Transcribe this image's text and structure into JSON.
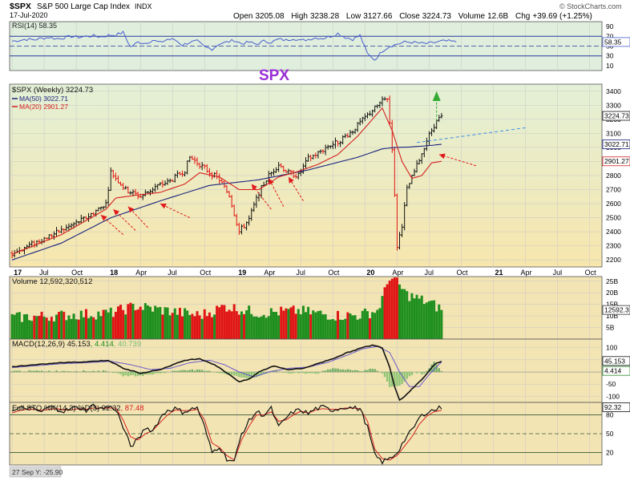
{
  "header": {
    "symbol": "$SPX",
    "name": "S&P 500 Large Cap Index",
    "exchange": "INDX",
    "date": "17-Jul-2020",
    "quote": {
      "open_label": "Open",
      "open": "3205.08",
      "high_label": "High",
      "high": "3238.28",
      "low_label": "Low",
      "low": "3127.66",
      "close_label": "Close",
      "close": "3224.73",
      "volume_label": "Volume",
      "volume": "12.6B",
      "chg_label": "Chg",
      "chg": "+39.69 (+1.25%)"
    },
    "watermark": "© StockCharts.com"
  },
  "annotation_text": "SPX",
  "colors": {
    "up": "#1e8f1e",
    "down": "#e01515",
    "price": "#111111",
    "ma50": "#1a237e",
    "ma20": "#d32020",
    "rsi": "#4a5fd0",
    "arrow": "#e01a1a",
    "target_arrow": "#33aa33",
    "trend": "#3a8ee6"
  },
  "chart_data": [
    {
      "type": "line",
      "panel": "rsi",
      "title": "RSI(14) 58.35",
      "ylim": [
        0,
        100
      ],
      "y_ticks": [
        90,
        70,
        50,
        30,
        10
      ],
      "ref_lines": [
        70,
        30
      ],
      "last_value_label": "58.35",
      "series": [
        {
          "name": "RSI(14)",
          "x": [
            0,
            3,
            6,
            9,
            12,
            15,
            18,
            21,
            24,
            27,
            30,
            33,
            36,
            39,
            42,
            45,
            48,
            51,
            54,
            57,
            60,
            63,
            66,
            69,
            72,
            75,
            78,
            81,
            84,
            87,
            90,
            93,
            96,
            99,
            102,
            105,
            108,
            111,
            114,
            117,
            120,
            123,
            126,
            129,
            132,
            135,
            138,
            141,
            144,
            147,
            150,
            153,
            156,
            159,
            162,
            165,
            168,
            171,
            174,
            177,
            180
          ],
          "values": [
            60,
            62,
            64,
            63,
            66,
            68,
            65,
            67,
            70,
            68,
            70,
            71,
            69,
            72,
            73,
            78,
            48,
            58,
            56,
            62,
            57,
            64,
            63,
            52,
            58,
            60,
            48,
            44,
            55,
            58,
            62,
            55,
            58,
            54,
            60,
            58,
            64,
            62,
            66,
            61,
            64,
            67,
            66,
            70,
            76,
            68,
            64,
            72,
            34,
            22,
            40,
            50,
            54,
            58,
            58,
            56,
            55,
            57,
            60,
            60,
            58.35
          ]
        }
      ]
    },
    {
      "type": "candlestick",
      "panel": "price",
      "title": "$SPX (Weekly) 3224.73",
      "ylim": [
        2150,
        3450
      ],
      "y_ticks": [
        3400,
        3300,
        3200,
        3100,
        3000,
        2900,
        2800,
        2700,
        2600,
        2500,
        2400,
        2300,
        2200
      ],
      "x_ticks": [
        {
          "x": 0,
          "label": "17"
        },
        {
          "x": 13,
          "label": "Jul"
        },
        {
          "x": 26,
          "label": "Oct"
        },
        {
          "x": 39,
          "label": "18"
        },
        {
          "x": 52,
          "label": "Apr"
        },
        {
          "x": 65,
          "label": "Jul"
        },
        {
          "x": 78,
          "label": "Oct"
        },
        {
          "x": 91,
          "label": "19"
        },
        {
          "x": 104,
          "label": "Apr"
        },
        {
          "x": 117,
          "label": "Jul"
        },
        {
          "x": 130,
          "label": "Oct"
        },
        {
          "x": 143,
          "label": "20"
        },
        {
          "x": 156,
          "label": "Apr"
        },
        {
          "x": 169,
          "label": "Jul"
        },
        {
          "x": 182,
          "label": "Oct"
        },
        {
          "x": 195,
          "label": "21"
        },
        {
          "x": 208,
          "label": "Apr"
        },
        {
          "x": 221,
          "label": "Jul"
        },
        {
          "x": 234,
          "label": "Oct"
        }
      ],
      "x_range": [
        -1,
        239
      ],
      "price_anchors_x": [
        0,
        10,
        20,
        30,
        38,
        40,
        46,
        52,
        58,
        64,
        70,
        72,
        76,
        84,
        88,
        92,
        96,
        100,
        104,
        108,
        112,
        116,
        120,
        124,
        128,
        132,
        138,
        144,
        150,
        152,
        154,
        156,
        158,
        160,
        164,
        168,
        171,
        174
      ],
      "price_anchors_y": [
        2245,
        2330,
        2410,
        2500,
        2600,
        2825,
        2700,
        2650,
        2720,
        2760,
        2840,
        2930,
        2880,
        2770,
        2660,
        2400,
        2490,
        2680,
        2800,
        2880,
        2820,
        2800,
        2920,
        2960,
        3010,
        3040,
        3120,
        3230,
        3330,
        3350,
        3000,
        2300,
        2450,
        2700,
        2870,
        3050,
        3160,
        3224.73
      ],
      "close": 3224.73,
      "ma50": {
        "name": "MA(50)",
        "value_label": "3022.71",
        "x": [
          0,
          20,
          40,
          60,
          80,
          100,
          120,
          140,
          150,
          155,
          160,
          165,
          170,
          174
        ],
        "values": [
          2200,
          2320,
          2500,
          2620,
          2730,
          2770,
          2840,
          2930,
          2990,
          3000,
          3002,
          3008,
          3015,
          3022.71
        ]
      },
      "ma20": {
        "name": "MA(20)",
        "value_label": "2901.27",
        "x": [
          0,
          20,
          38,
          42,
          50,
          60,
          70,
          76,
          84,
          92,
          100,
          108,
          116,
          124,
          132,
          140,
          146,
          150,
          154,
          158,
          162,
          166,
          170,
          174
        ],
        "values": [
          2240,
          2380,
          2560,
          2640,
          2660,
          2680,
          2740,
          2820,
          2790,
          2700,
          2700,
          2790,
          2830,
          2880,
          2950,
          3080,
          3200,
          3280,
          3120,
          2900,
          2780,
          2800,
          2890,
          2901.27
        ]
      },
      "last_labels": [
        "3224.73",
        "3022.71",
        "2901.27"
      ]
    },
    {
      "type": "bar",
      "panel": "volume",
      "title": "Volume 12,592,320,512",
      "ylim": [
        0,
        27
      ],
      "y_ticks": [
        {
          "value": 25,
          "label": "25B"
        },
        {
          "value": 20,
          "label": "20B"
        },
        {
          "value": 15,
          "label": "15B"
        },
        {
          "value": 10,
          "label": "10B"
        },
        {
          "value": 5,
          "label": "5B"
        }
      ],
      "last_value_label": "12592.3",
      "series": [
        {
          "name": "Volume",
          "anchors_x": [
            0,
            40,
            50,
            76,
            82,
            86,
            100,
            116,
            130,
            140,
            148,
            151,
            153,
            156,
            160,
            170,
            174
          ],
          "anchors_y": [
            9,
            11,
            14,
            10,
            12,
            14,
            11,
            12,
            10,
            10,
            12,
            20,
            27,
            24,
            19,
            15,
            12.59
          ]
        }
      ]
    },
    {
      "type": "line",
      "panel": "macd",
      "title": "MACD(12,26,9) 45.153, 4.414, 40.739",
      "legend": [
        "MACD(12,26,9) 45.153",
        "4.414",
        "40.739"
      ],
      "ylim": [
        -125,
        135
      ],
      "y_ticks": [
        100,
        50,
        -50,
        -100
      ],
      "last_labels": [
        "45.153",
        "4.414"
      ],
      "series": [
        {
          "name": "MACD",
          "x": [
            0,
            10,
            20,
            30,
            39,
            45,
            52,
            60,
            70,
            76,
            82,
            88,
            92,
            96,
            100,
            106,
            112,
            118,
            124,
            130,
            136,
            142,
            146,
            150,
            153,
            155,
            157,
            159,
            163,
            167,
            171,
            174
          ],
          "values": [
            22,
            30,
            38,
            42,
            48,
            15,
            -5,
            10,
            48,
            55,
            30,
            -10,
            -40,
            -30,
            0,
            25,
            10,
            15,
            35,
            55,
            80,
            100,
            110,
            100,
            20,
            -60,
            -115,
            -100,
            -60,
            -20,
            30,
            45.153
          ]
        },
        {
          "name": "Signal",
          "x": [
            0,
            10,
            20,
            30,
            40,
            48,
            56,
            64,
            72,
            80,
            86,
            92,
            98,
            104,
            112,
            120,
            128,
            136,
            142,
            148,
            153,
            157,
            161,
            165,
            169,
            174
          ],
          "values": [
            18,
            26,
            34,
            38,
            44,
            30,
            10,
            15,
            38,
            48,
            30,
            0,
            -20,
            0,
            15,
            20,
            40,
            70,
            95,
            105,
            80,
            0,
            -60,
            -60,
            -10,
            40.739
          ]
        },
        {
          "name": "Histogram",
          "x": [
            0,
            10,
            20,
            30,
            39,
            45,
            52,
            60,
            70,
            76,
            82,
            88,
            92,
            96,
            100,
            106,
            112,
            118,
            124,
            130,
            136,
            142,
            146,
            150,
            153,
            155,
            157,
            159,
            163,
            167,
            171,
            174
          ],
          "values": [
            4,
            4,
            4,
            4,
            4,
            -15,
            -15,
            -5,
            10,
            7,
            0,
            -10,
            -20,
            -30,
            -15,
            5,
            -5,
            -5,
            -5,
            15,
            10,
            5,
            15,
            -5,
            -60,
            -60,
            -55,
            -40,
            0,
            -10,
            40,
            4.414
          ]
        }
      ]
    },
    {
      "type": "line",
      "panel": "stochastic",
      "title": "Full STO %K(14,3) %D(3) 92.32, 87.48",
      "legend": [
        "Full STO %K(14,3) %D(3) 92.32",
        "87.48"
      ],
      "ylim": [
        0,
        100
      ],
      "y_ticks": [
        80,
        50,
        20
      ],
      "ref_lines": [
        80,
        20
      ],
      "last_value_label": "92.32",
      "series": [
        {
          "name": "%K",
          "x": [
            0,
            3,
            6,
            9,
            12,
            15,
            18,
            21,
            24,
            27,
            30,
            33,
            36,
            39,
            42,
            45,
            48,
            51,
            54,
            57,
            60,
            63,
            66,
            69,
            72,
            75,
            78,
            81,
            84,
            87,
            90,
            93,
            96,
            99,
            102,
            105,
            108,
            111,
            114,
            117,
            120,
            123,
            126,
            129,
            132,
            135,
            138,
            141,
            144,
            147,
            150,
            153,
            156,
            159,
            162,
            165,
            168,
            171,
            174
          ],
          "values": [
            85,
            90,
            92,
            88,
            85,
            93,
            91,
            86,
            90,
            92,
            88,
            95,
            90,
            93,
            90,
            60,
            30,
            40,
            60,
            55,
            75,
            88,
            90,
            85,
            88,
            92,
            60,
            20,
            30,
            10,
            5,
            50,
            70,
            85,
            80,
            90,
            60,
            75,
            85,
            88,
            82,
            90,
            92,
            88,
            90,
            93,
            91,
            90,
            60,
            15,
            5,
            10,
            20,
            40,
            55,
            75,
            85,
            88,
            92.32
          ]
        },
        {
          "name": "%D",
          "x": [
            0,
            3,
            6,
            9,
            12,
            15,
            18,
            21,
            24,
            27,
            30,
            33,
            36,
            39,
            42,
            45,
            48,
            51,
            54,
            57,
            60,
            63,
            66,
            69,
            72,
            75,
            78,
            81,
            84,
            87,
            90,
            93,
            96,
            99,
            102,
            105,
            108,
            111,
            114,
            117,
            120,
            123,
            126,
            129,
            132,
            135,
            138,
            141,
            144,
            147,
            150,
            153,
            156,
            159,
            162,
            165,
            168,
            171,
            174
          ],
          "values": [
            83,
            87,
            89,
            89,
            87,
            89,
            90,
            88,
            88,
            90,
            89,
            91,
            91,
            91,
            91,
            72,
            45,
            40,
            50,
            55,
            68,
            80,
            88,
            87,
            87,
            89,
            72,
            35,
            28,
            15,
            8,
            40,
            62,
            80,
            80,
            85,
            70,
            72,
            80,
            86,
            83,
            88,
            90,
            89,
            89,
            91,
            91,
            90,
            70,
            25,
            10,
            8,
            15,
            30,
            45,
            65,
            78,
            85,
            87.48
          ]
        }
      ]
    }
  ],
  "status_label": "27 Sep Y: -25.90"
}
